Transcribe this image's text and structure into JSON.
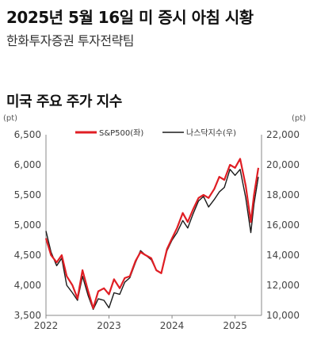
{
  "header": {
    "title": "2025년 5월 16일 미 증시 아침 시황",
    "subtitle": "한화투자증권 투자전략팀"
  },
  "chart_data": {
    "type": "line",
    "title": "미국 주요 주가 지수",
    "y_left_unit": "(pt)",
    "y_right_unit": "(pt)",
    "y_left_range": [
      3500,
      6500
    ],
    "y_right_range": [
      10000,
      22000
    ],
    "y_left_ticks": [
      "6,500",
      "6,000",
      "5,500",
      "5,000",
      "4,500",
      "4,000",
      "3,500"
    ],
    "y_right_ticks": [
      "22,000",
      "20,000",
      "18,000",
      "16,000",
      "14,000",
      "12,000",
      "10,000"
    ],
    "x_ticks": [
      "2022",
      "2023",
      "2024",
      "2025"
    ],
    "x_range": [
      2022.0,
      2025.42
    ],
    "legend_position": "top",
    "colors": {
      "sp500": "#e01e24",
      "nasdaq": "#1a1a1a"
    },
    "series": [
      {
        "name": "S&P500(좌)",
        "axis": "left",
        "x": [
          2022.0,
          2022.08,
          2022.17,
          2022.25,
          2022.33,
          2022.42,
          2022.5,
          2022.58,
          2022.67,
          2022.75,
          2022.83,
          2022.92,
          2023.0,
          2023.08,
          2023.17,
          2023.25,
          2023.33,
          2023.42,
          2023.5,
          2023.58,
          2023.67,
          2023.75,
          2023.83,
          2023.92,
          2024.0,
          2024.08,
          2024.17,
          2024.25,
          2024.33,
          2024.42,
          2024.5,
          2024.58,
          2024.67,
          2024.75,
          2024.83,
          2024.92,
          2025.0,
          2025.08,
          2025.17,
          2025.25,
          2025.3,
          2025.37
        ],
        "values": [
          4780,
          4500,
          4380,
          4500,
          4150,
          4000,
          3780,
          4250,
          3900,
          3620,
          3900,
          3950,
          3850,
          4100,
          3950,
          4120,
          4150,
          4400,
          4550,
          4500,
          4450,
          4250,
          4200,
          4600,
          4780,
          4950,
          5200,
          5050,
          5250,
          5450,
          5500,
          5450,
          5600,
          5800,
          5750,
          6000,
          5950,
          6100,
          5650,
          5050,
          5500,
          5950
        ]
      },
      {
        "name": "나스닥지수(우)",
        "axis": "right",
        "x": [
          2022.0,
          2022.08,
          2022.17,
          2022.25,
          2022.33,
          2022.42,
          2022.5,
          2022.58,
          2022.67,
          2022.75,
          2022.83,
          2022.92,
          2023.0,
          2023.08,
          2023.17,
          2023.25,
          2023.33,
          2023.42,
          2023.5,
          2023.58,
          2023.67,
          2023.75,
          2023.83,
          2023.92,
          2024.0,
          2024.08,
          2024.17,
          2024.25,
          2024.33,
          2024.42,
          2024.5,
          2024.58,
          2024.67,
          2024.75,
          2024.83,
          2024.92,
          2025.0,
          2025.08,
          2025.17,
          2025.25,
          2025.3,
          2025.37
        ],
        "values": [
          15600,
          14200,
          13300,
          13800,
          12000,
          11500,
          11000,
          12600,
          11300,
          10400,
          11100,
          11000,
          10500,
          11500,
          11400,
          12200,
          12500,
          13500,
          14300,
          14000,
          13700,
          13000,
          12800,
          14300,
          15000,
          15500,
          16300,
          15800,
          16700,
          17600,
          17900,
          17200,
          17700,
          18200,
          18500,
          19700,
          19300,
          19700,
          17800,
          15500,
          17400,
          19200
        ]
      }
    ]
  }
}
